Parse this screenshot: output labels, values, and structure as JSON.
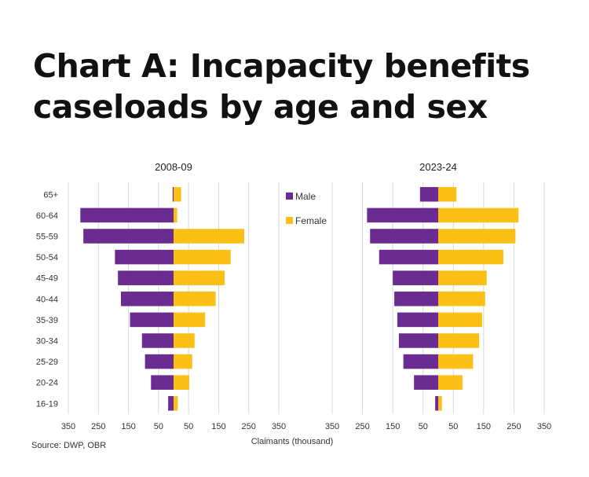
{
  "title_lines": [
    "Chart A: Incapacity benefits",
    "caseloads by age and sex"
  ],
  "source": "Source: DWP, OBR",
  "colors": {
    "male": "#6a2c91",
    "female": "#fcbf16",
    "grid": "#d9d9d9",
    "text": "#333333"
  },
  "chart_data": {
    "type": "bar",
    "orientation": "horizontal-diverging",
    "title": "Chart A: Incapacity benefits caseloads by age and sex",
    "xlabel": "Claimants (thousand)",
    "tick_labels": [
      "350",
      "250",
      "150",
      "50",
      "50",
      "150",
      "250",
      "350"
    ],
    "xlim": [
      -350,
      350
    ],
    "categories": [
      "65+",
      "60-64",
      "55-59",
      "50-54",
      "45-49",
      "40-44",
      "35-39",
      "30-34",
      "25-29",
      "20-24",
      "16-19"
    ],
    "legend": {
      "position": "between-panels",
      "entries": [
        "Male",
        "Female"
      ]
    },
    "panels": [
      {
        "title": "2008-09",
        "series": [
          {
            "name": "Male",
            "values": [
              3,
              310,
              300,
              195,
              185,
              175,
              145,
              105,
              95,
              75,
              18
            ]
          },
          {
            "name": "Female",
            "values": [
              25,
              12,
              235,
              190,
              170,
              140,
              105,
              70,
              62,
              52,
              14
            ]
          }
        ]
      },
      {
        "title": "2023-24",
        "series": [
          {
            "name": "Male",
            "values": [
              60,
              235,
              225,
              195,
              150,
              145,
              135,
              130,
              115,
              80,
              10
            ]
          },
          {
            "name": "Female",
            "values": [
              60,
              265,
              255,
              215,
              160,
              155,
              145,
              135,
              115,
              80,
              12
            ]
          }
        ]
      }
    ]
  }
}
